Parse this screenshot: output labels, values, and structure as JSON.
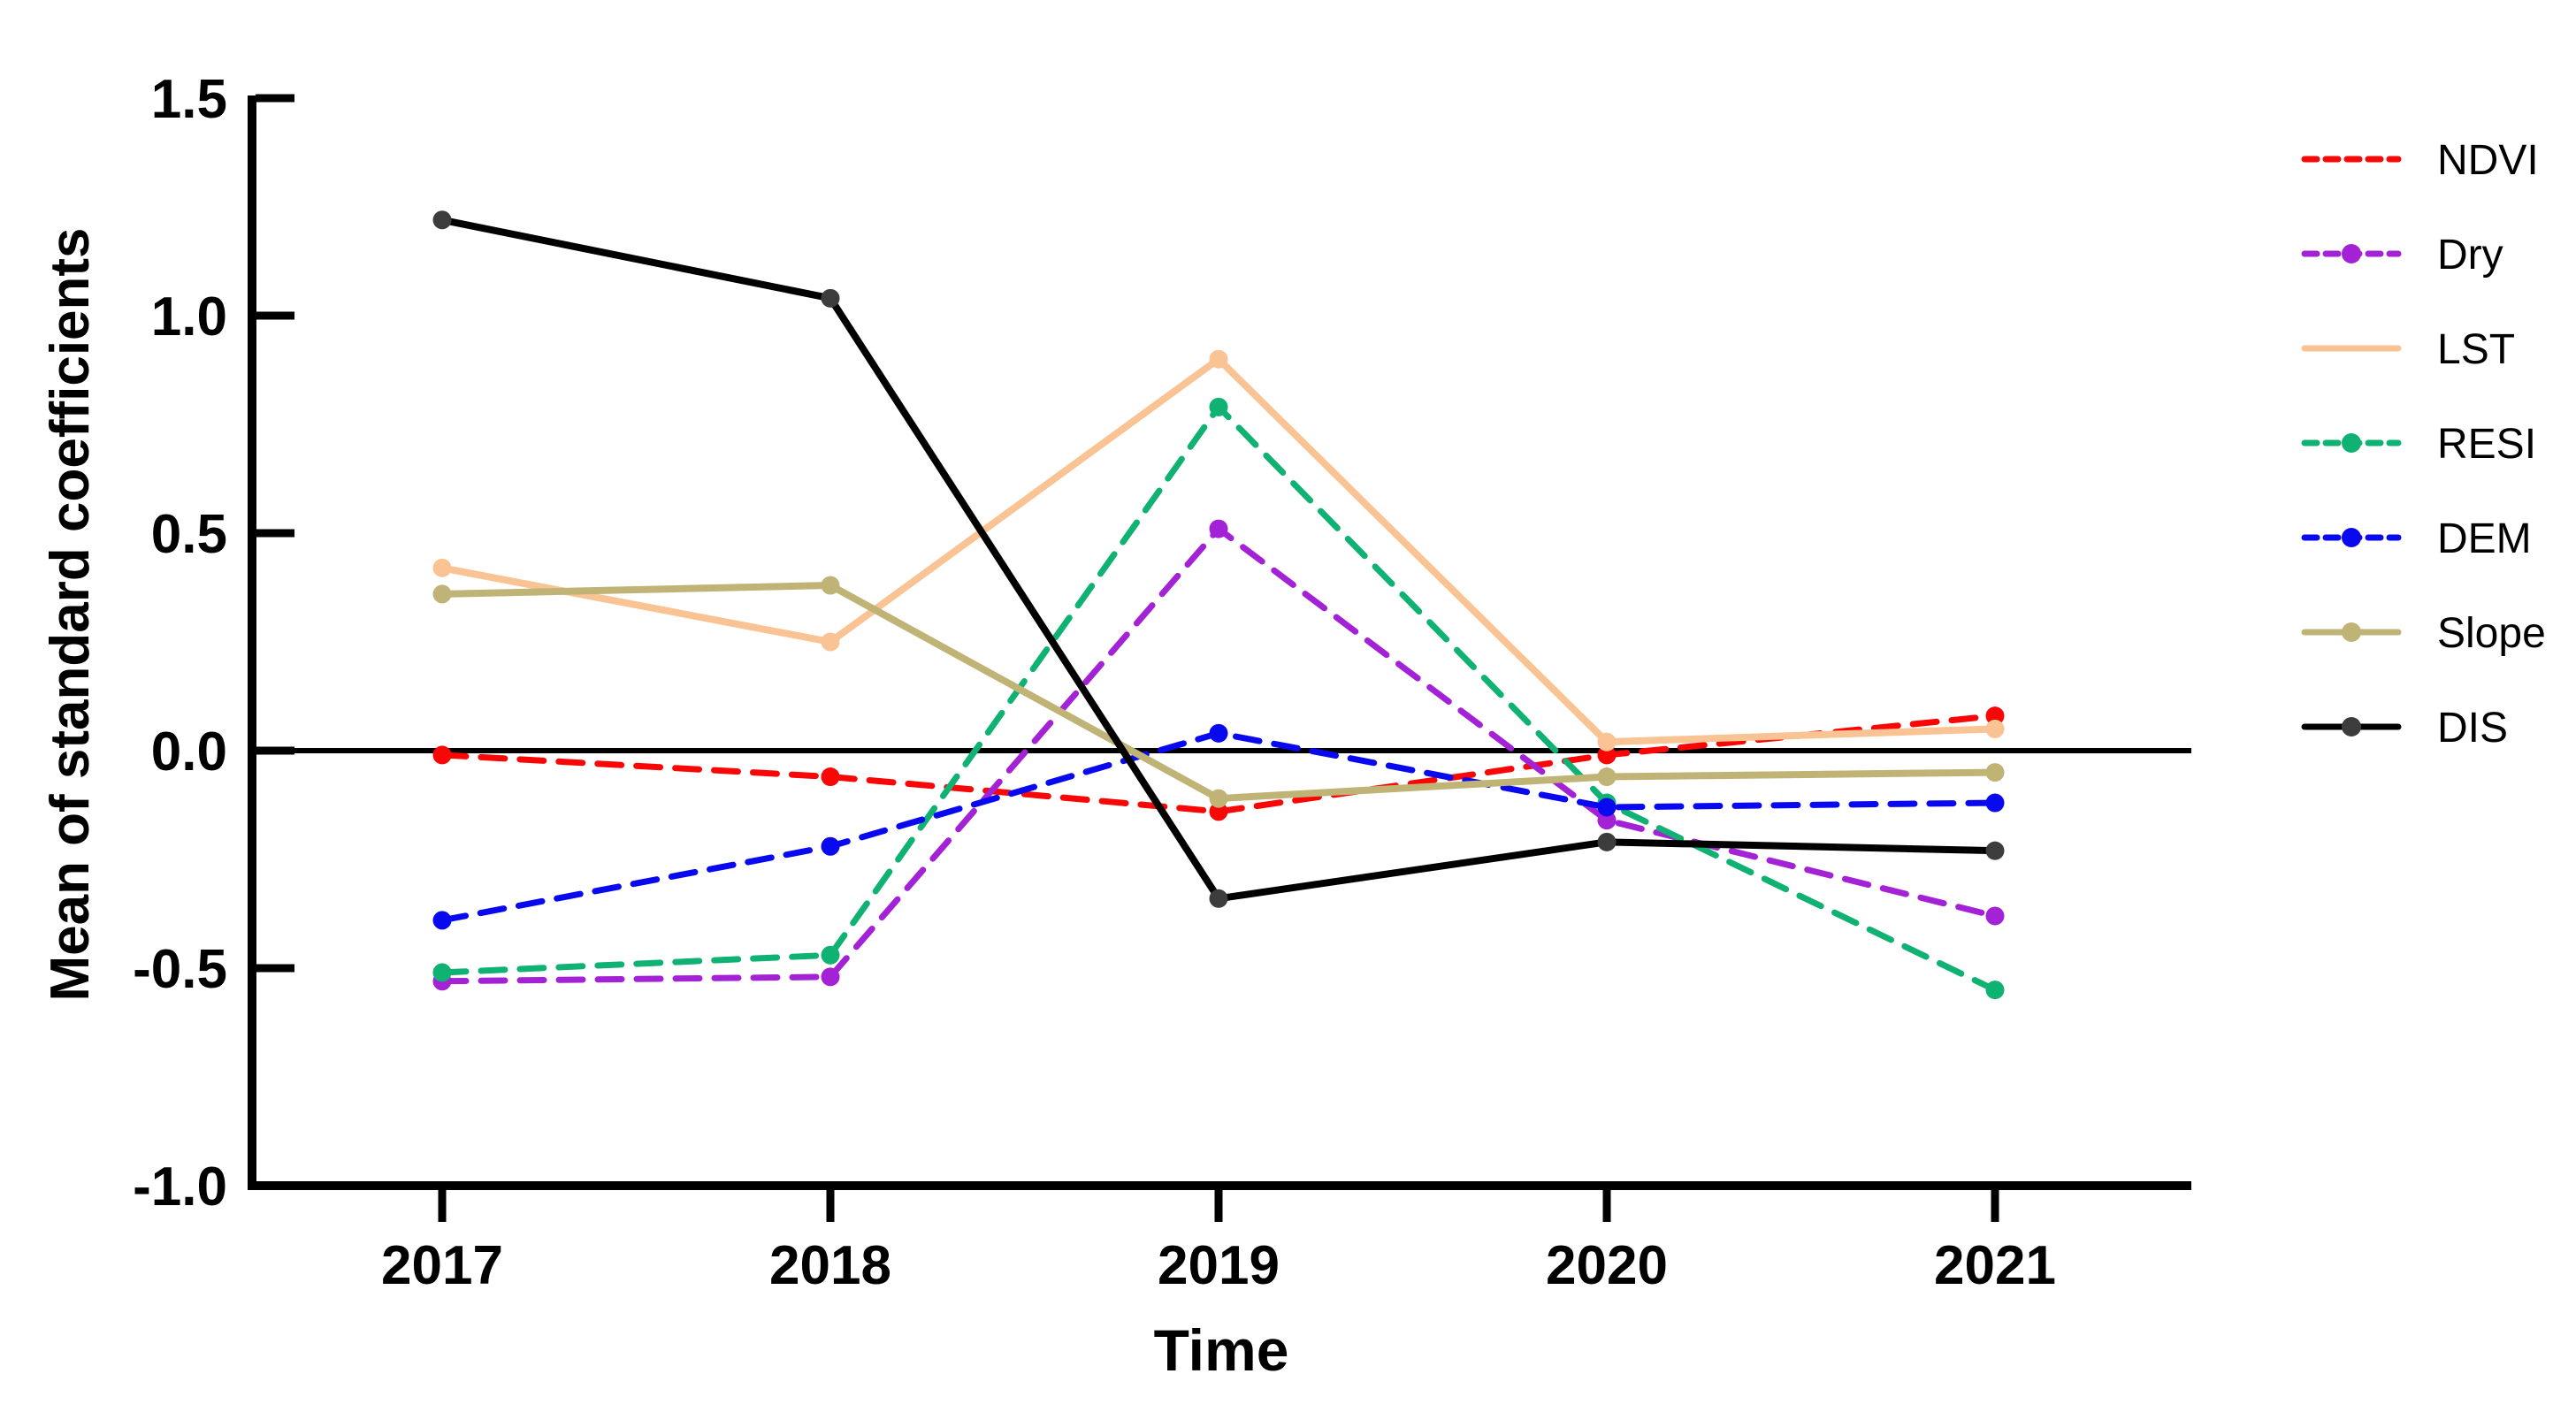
{
  "chart_data": {
    "type": "line",
    "title": "",
    "xlabel": "Time",
    "ylabel": "Mean of standard coefficients",
    "categories": [
      "2017",
      "2018",
      "2019",
      "2020",
      "2021"
    ],
    "x_axis": {
      "label": "Time",
      "ticks": [
        "2017",
        "2018",
        "2019",
        "2020",
        "2021"
      ]
    },
    "y_axis": {
      "label": "Mean of standard coefficients",
      "ticks": [
        1.5,
        1.0,
        0.5,
        0.0,
        -0.5,
        -1.0
      ],
      "range": [
        -1.0,
        1.5
      ]
    },
    "ylim": [
      -1.0,
      1.5
    ],
    "grid": false,
    "zero_reference_line": true,
    "legend_position": "right",
    "series": [
      {
        "name": "NDVI",
        "color": "#F90606",
        "marker_color": "#F90606",
        "style": "dashed",
        "marker": true,
        "legend_marker": false,
        "values": [
          -0.01,
          -0.06,
          -0.14,
          -0.01,
          0.08
        ]
      },
      {
        "name": "Dry",
        "color": "#A322D5",
        "marker_color": "#A322D5",
        "style": "dashed",
        "marker": true,
        "legend_marker": true,
        "values": [
          -0.53,
          -0.52,
          0.51,
          -0.16,
          -0.38
        ]
      },
      {
        "name": "LST",
        "color": "#FAC393",
        "marker_color": "#FAC393",
        "style": "solid",
        "marker": true,
        "legend_marker": false,
        "values": [
          0.42,
          0.25,
          0.9,
          0.02,
          0.05
        ]
      },
      {
        "name": "RESI",
        "color": "#0FB273",
        "marker_color": "#0FB273",
        "style": "dashed",
        "marker": true,
        "legend_marker": true,
        "values": [
          -0.51,
          -0.47,
          0.79,
          -0.12,
          -0.55
        ]
      },
      {
        "name": "DEM",
        "color": "#0909EF",
        "marker_color": "#0909EF",
        "style": "dashed",
        "marker": true,
        "legend_marker": true,
        "values": [
          -0.39,
          -0.22,
          0.04,
          -0.13,
          -0.12
        ]
      },
      {
        "name": "Slope",
        "color": "#BFB476",
        "marker_color": "#BFB476",
        "style": "solid",
        "marker": true,
        "legend_marker": true,
        "values": [
          0.36,
          0.38,
          -0.11,
          -0.06,
          -0.05
        ]
      },
      {
        "name": "DIS",
        "color": "#000000",
        "marker_color": "#3C3C3C",
        "style": "solid",
        "marker": true,
        "legend_marker": true,
        "values": [
          1.22,
          1.04,
          -0.34,
          -0.21,
          -0.23
        ]
      }
    ],
    "axis_color": "#000000"
  }
}
